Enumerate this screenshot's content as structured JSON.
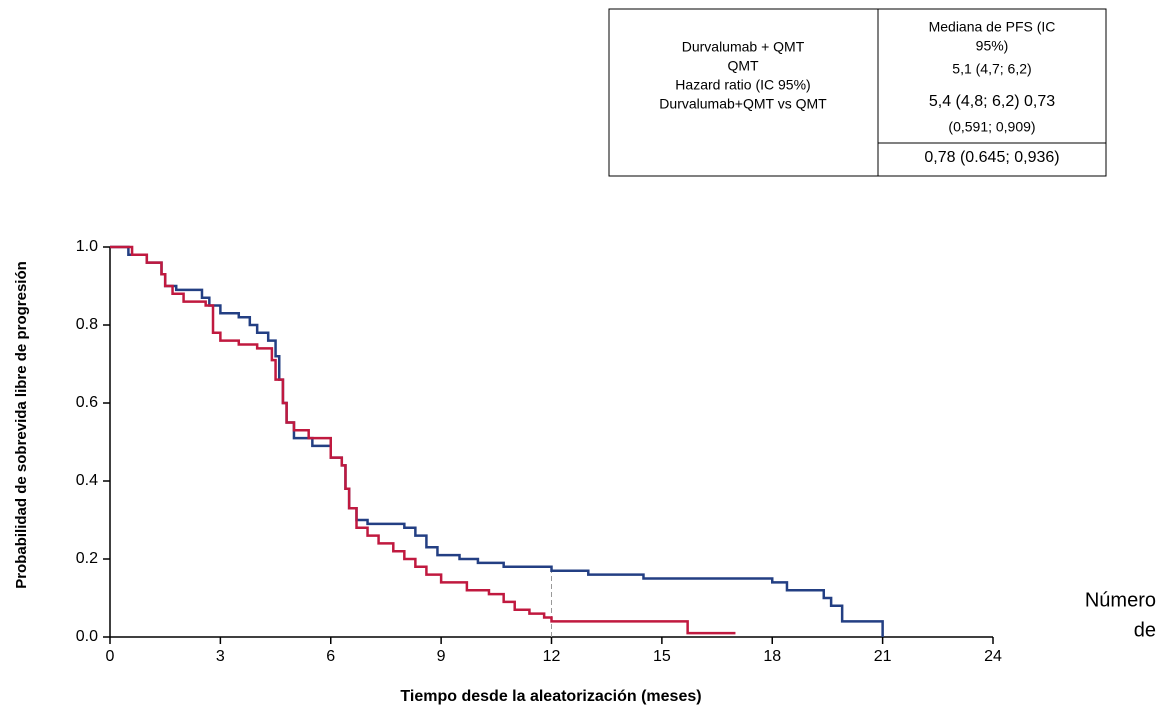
{
  "chart_data": {
    "type": "step",
    "xlabel": "Tiempo desde la aleatorización (meses)",
    "ylabel": "Probabilidad de sobrevida libre de progresión",
    "xlim": [
      0,
      24
    ],
    "xticks": [
      0,
      3,
      6,
      9,
      12,
      15,
      18,
      21,
      24
    ],
    "ylim": [
      0,
      1
    ],
    "yticks": [
      {
        "value": 0,
        "label": "0.0"
      },
      {
        "value": 0.2,
        "label": "0.2"
      },
      {
        "value": 0.4,
        "label": "0.4"
      },
      {
        "value": 0.6,
        "label": "0.6"
      },
      {
        "value": 0.8,
        "label": "0.8"
      },
      {
        "value": 1,
        "label": "1.0"
      }
    ],
    "reference_x": 12,
    "series": [
      {
        "color": "#233f83",
        "x": [
          0,
          0.5,
          1.0,
          1.4,
          1.5,
          1.8,
          2.5,
          2.7,
          3.0,
          3.5,
          3.8,
          4.0,
          4.3,
          4.5,
          4.6,
          4.7,
          4.8,
          5.0,
          5.5,
          6.0,
          6.3,
          6.4,
          6.5,
          6.7,
          7.0,
          8.0,
          8.3,
          8.6,
          8.9,
          9.5,
          10.0,
          10.7,
          12.0,
          13.0,
          14.5,
          18.0,
          18.4,
          19.4,
          19.6,
          19.9,
          21.0
        ],
        "values": [
          1.0,
          0.98,
          0.96,
          0.93,
          0.9,
          0.89,
          0.87,
          0.85,
          0.83,
          0.82,
          0.8,
          0.78,
          0.76,
          0.72,
          0.66,
          0.6,
          0.55,
          0.51,
          0.49,
          0.46,
          0.44,
          0.38,
          0.33,
          0.3,
          0.29,
          0.28,
          0.26,
          0.23,
          0.21,
          0.2,
          0.19,
          0.18,
          0.17,
          0.16,
          0.15,
          0.14,
          0.12,
          0.1,
          0.08,
          0.04,
          0.0
        ]
      },
      {
        "color": "#c0193f",
        "x": [
          0,
          0.6,
          1.0,
          1.4,
          1.5,
          1.7,
          2.0,
          2.6,
          2.8,
          3.0,
          3.5,
          4.0,
          4.4,
          4.5,
          4.7,
          4.8,
          5.0,
          5.4,
          6.0,
          6.3,
          6.4,
          6.5,
          6.7,
          7.0,
          7.3,
          7.7,
          8.0,
          8.3,
          8.6,
          9.0,
          9.7,
          10.3,
          10.7,
          11.0,
          11.4,
          11.8,
          12.0,
          15.7,
          17.0
        ],
        "values": [
          1.0,
          0.98,
          0.96,
          0.93,
          0.9,
          0.88,
          0.86,
          0.85,
          0.78,
          0.76,
          0.75,
          0.74,
          0.71,
          0.66,
          0.6,
          0.55,
          0.53,
          0.51,
          0.46,
          0.44,
          0.38,
          0.33,
          0.28,
          0.26,
          0.24,
          0.22,
          0.2,
          0.18,
          0.16,
          0.14,
          0.12,
          0.11,
          0.09,
          0.07,
          0.06,
          0.05,
          0.04,
          0.01,
          0.01
        ]
      }
    ]
  },
  "table": {
    "left": [
      "Durvalumab + QMT",
      "QMT",
      "Hazard ratio (IC 95%)",
      "Durvalumab+QMT vs QMT"
    ],
    "right": [
      "Mediana de PFS (IC",
      "95%)",
      "5,1 (4,7; 6,2)",
      "5,4 (4,8; 6,2) 0,73",
      "(0,591; 0,909)",
      "0,78 (0.645; 0,936)"
    ]
  },
  "side_note": [
    "Número",
    "de"
  ]
}
